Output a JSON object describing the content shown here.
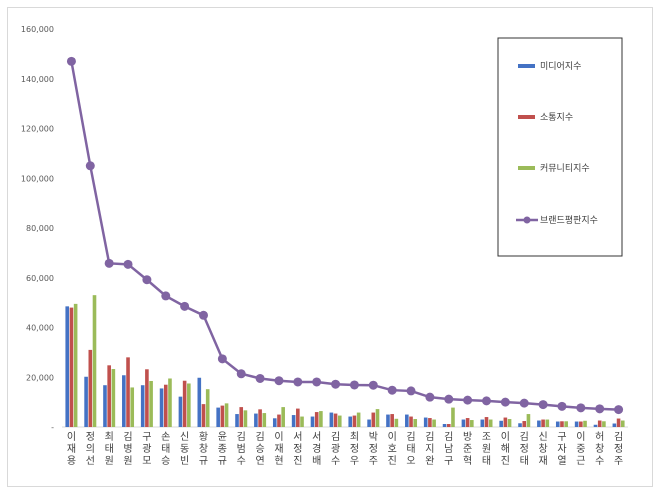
{
  "chart_data": {
    "type": "bar",
    "categories": [
      "이재용",
      "정의선",
      "최태원",
      "김병원",
      "구광모",
      "손태승",
      "신동빈",
      "황창규",
      "윤종규",
      "김범수",
      "김승연",
      "이재현",
      "서정진",
      "서경배",
      "김광수",
      "최정우",
      "박정주",
      "이호진",
      "김태오",
      "김지완",
      "김남구",
      "방준혁",
      "조원태",
      "이해진",
      "김정태",
      "신창재",
      "구자열",
      "이중근",
      "허창수",
      "김정주"
    ],
    "series": [
      {
        "name": "미디어지수",
        "kind": "bar",
        "color": "#4472c4",
        "values": [
          48500,
          20200,
          16800,
          20800,
          16800,
          15500,
          12200,
          19800,
          7800,
          5200,
          5400,
          3500,
          4800,
          4200,
          5800,
          4200,
          3000,
          5000,
          5000,
          3800,
          1200,
          3000,
          3000,
          2500,
          1500,
          2600,
          2200,
          2200,
          900,
          1400
        ]
      },
      {
        "name": "소통지수",
        "kind": "bar",
        "color": "#c0504d",
        "values": [
          48000,
          31000,
          24800,
          28000,
          23200,
          17000,
          18600,
          9200,
          8600,
          8000,
          7100,
          5000,
          7400,
          6000,
          5400,
          4600,
          5800,
          5200,
          4200,
          3600,
          1200,
          3600,
          4000,
          3800,
          2400,
          3000,
          2300,
          2200,
          2600,
          3400
        ]
      },
      {
        "name": "커뮤니티지수",
        "kind": "bar",
        "color": "#9bbb59",
        "values": [
          49500,
          53000,
          23300,
          15900,
          18500,
          19500,
          17500,
          15200,
          9500,
          6700,
          5600,
          8000,
          4200,
          6400,
          4600,
          5800,
          7200,
          3300,
          3200,
          3000,
          7800,
          2800,
          3000,
          3200,
          5200,
          3000,
          2300,
          2500,
          2300,
          2600
        ]
      },
      {
        "name": "브랜드평판지수",
        "kind": "line",
        "color": "#8064a2",
        "values": [
          147000,
          105000,
          65800,
          65400,
          59200,
          52700,
          48500,
          44900,
          27400,
          21400,
          19500,
          18600,
          18100,
          18100,
          17200,
          16900,
          16800,
          14800,
          14500,
          12000,
          11200,
          10800,
          10500,
          10000,
          9600,
          9000,
          8300,
          7700,
          7300,
          7000
        ]
      }
    ],
    "ylim": [
      0,
      160000
    ],
    "yticks": [
      "-",
      "20,000",
      "40,000",
      "60,000",
      "80,000",
      "100,000",
      "120,000",
      "140,000",
      "160,000"
    ],
    "legend_placement": "right"
  }
}
